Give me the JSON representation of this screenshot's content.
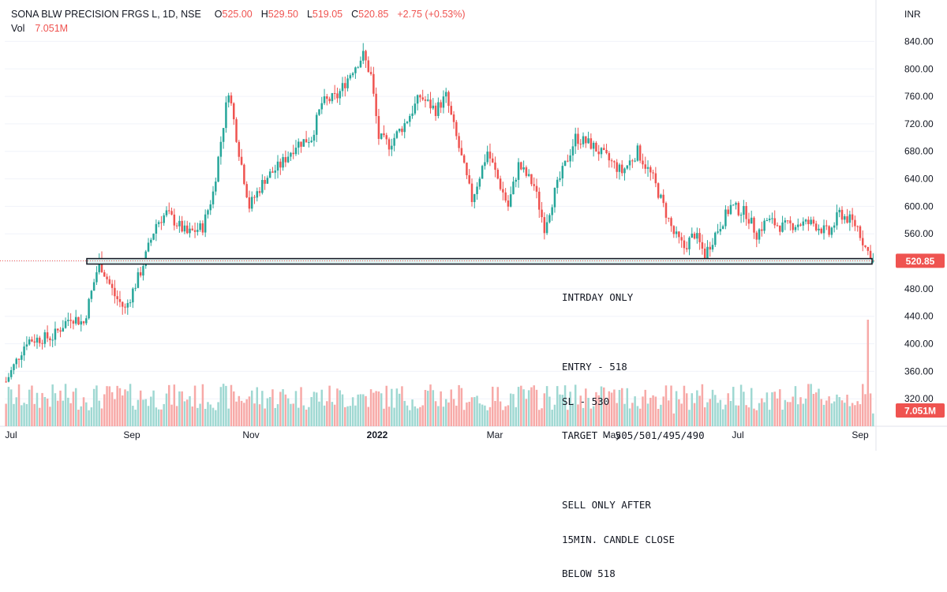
{
  "header": {
    "symbol": "SONA BLW PRECISION FRGS L, 1D, NSE",
    "o_label": "O",
    "o_value": "525.00",
    "h_label": "H",
    "h_value": "529.50",
    "l_label": "L",
    "l_value": "519.05",
    "c_label": "C",
    "c_value": "520.85",
    "change": "+2.75 (+0.53%)",
    "vol_label": "Vol",
    "vol_value": "7.051M"
  },
  "currency": "INR",
  "price_badge": "520.85",
  "volume_badge": "7.051M",
  "annotation": {
    "lines": [
      "INTRDAY ONLY",
      "",
      "ENTRY - 518",
      "SL - 530",
      "TARGET - 505/501/495/490",
      "",
      "SELL ONLY AFTER",
      "15MIN. CANDLE CLOSE",
      "BELOW 518"
    ]
  },
  "colors": {
    "up": "#26a69a",
    "down": "#ef5350",
    "vol_up": "#9fd8d2",
    "vol_down": "#f7a9a7",
    "zone_fill": "#e0f2f1",
    "grid": "#f0f3fa"
  },
  "chart_data": {
    "type": "candlestick",
    "ylim": [
      300,
      860
    ],
    "y_ticks": [
      "320.00",
      "360.00",
      "400.00",
      "440.00",
      "480.00",
      "520.00",
      "560.00",
      "600.00",
      "640.00",
      "680.00",
      "720.00",
      "760.00",
      "800.00",
      "840.00"
    ],
    "x_ticks": [
      "Jul",
      "Sep",
      "Nov",
      "2022",
      "Mar",
      "May",
      "Jul",
      "Sep"
    ],
    "support_zone": [
      516,
      524
    ],
    "last_price": 520.85,
    "last_volume": "7.051M",
    "price_path": [
      {
        "bar": 0,
        "price": 345
      },
      {
        "bar": 8,
        "price": 405
      },
      {
        "bar": 18,
        "price": 410
      },
      {
        "bar": 25,
        "price": 440
      },
      {
        "bar": 30,
        "price": 430
      },
      {
        "bar": 36,
        "price": 520
      },
      {
        "bar": 42,
        "price": 470
      },
      {
        "bar": 46,
        "price": 450
      },
      {
        "bar": 52,
        "price": 505
      },
      {
        "bar": 58,
        "price": 575
      },
      {
        "bar": 62,
        "price": 590
      },
      {
        "bar": 70,
        "price": 560
      },
      {
        "bar": 76,
        "price": 570
      },
      {
        "bar": 80,
        "price": 620
      },
      {
        "bar": 86,
        "price": 770
      },
      {
        "bar": 90,
        "price": 680
      },
      {
        "bar": 94,
        "price": 600
      },
      {
        "bar": 100,
        "price": 640
      },
      {
        "bar": 106,
        "price": 660
      },
      {
        "bar": 112,
        "price": 690
      },
      {
        "bar": 118,
        "price": 700
      },
      {
        "bar": 122,
        "price": 750
      },
      {
        "bar": 128,
        "price": 760
      },
      {
        "bar": 134,
        "price": 800
      },
      {
        "bar": 138,
        "price": 820
      },
      {
        "bar": 141,
        "price": 790
      },
      {
        "bar": 144,
        "price": 700
      },
      {
        "bar": 148,
        "price": 690
      },
      {
        "bar": 154,
        "price": 720
      },
      {
        "bar": 160,
        "price": 760
      },
      {
        "bar": 166,
        "price": 740
      },
      {
        "bar": 170,
        "price": 760
      },
      {
        "bar": 174,
        "price": 700
      },
      {
        "bar": 178,
        "price": 640
      },
      {
        "bar": 180,
        "price": 610
      },
      {
        "bar": 186,
        "price": 680
      },
      {
        "bar": 190,
        "price": 640
      },
      {
        "bar": 194,
        "price": 600
      },
      {
        "bar": 198,
        "price": 660
      },
      {
        "bar": 204,
        "price": 630
      },
      {
        "bar": 208,
        "price": 570
      },
      {
        "bar": 212,
        "price": 620
      },
      {
        "bar": 216,
        "price": 660
      },
      {
        "bar": 220,
        "price": 700
      },
      {
        "bar": 226,
        "price": 690
      },
      {
        "bar": 232,
        "price": 670
      },
      {
        "bar": 238,
        "price": 650
      },
      {
        "bar": 244,
        "price": 680
      },
      {
        "bar": 250,
        "price": 640
      },
      {
        "bar": 254,
        "price": 600
      },
      {
        "bar": 258,
        "price": 560
      },
      {
        "bar": 262,
        "price": 540
      },
      {
        "bar": 266,
        "price": 560
      },
      {
        "bar": 270,
        "price": 530
      },
      {
        "bar": 274,
        "price": 560
      },
      {
        "bar": 280,
        "price": 600
      },
      {
        "bar": 286,
        "price": 590
      },
      {
        "bar": 290,
        "price": 560
      },
      {
        "bar": 294,
        "price": 580
      },
      {
        "bar": 300,
        "price": 570
      },
      {
        "bar": 306,
        "price": 575
      },
      {
        "bar": 312,
        "price": 575
      },
      {
        "bar": 318,
        "price": 560
      },
      {
        "bar": 322,
        "price": 590
      },
      {
        "bar": 326,
        "price": 580
      },
      {
        "bar": 329,
        "price": 570
      },
      {
        "bar": 332,
        "price": 540
      },
      {
        "bar": 335,
        "price": 521
      }
    ],
    "volume_spikes": [
      {
        "bar": 34,
        "height": 0.35
      },
      {
        "bar": 70,
        "height": 0.25
      },
      {
        "bar": 92,
        "height": 0.22
      },
      {
        "bar": 138,
        "height": 0.3
      },
      {
        "bar": 160,
        "height": 0.18
      },
      {
        "bar": 186,
        "height": 0.15
      },
      {
        "bar": 258,
        "height": 0.12
      },
      {
        "bar": 333,
        "height": 1.0
      },
      {
        "bar": 335,
        "height": 0.12
      }
    ]
  }
}
